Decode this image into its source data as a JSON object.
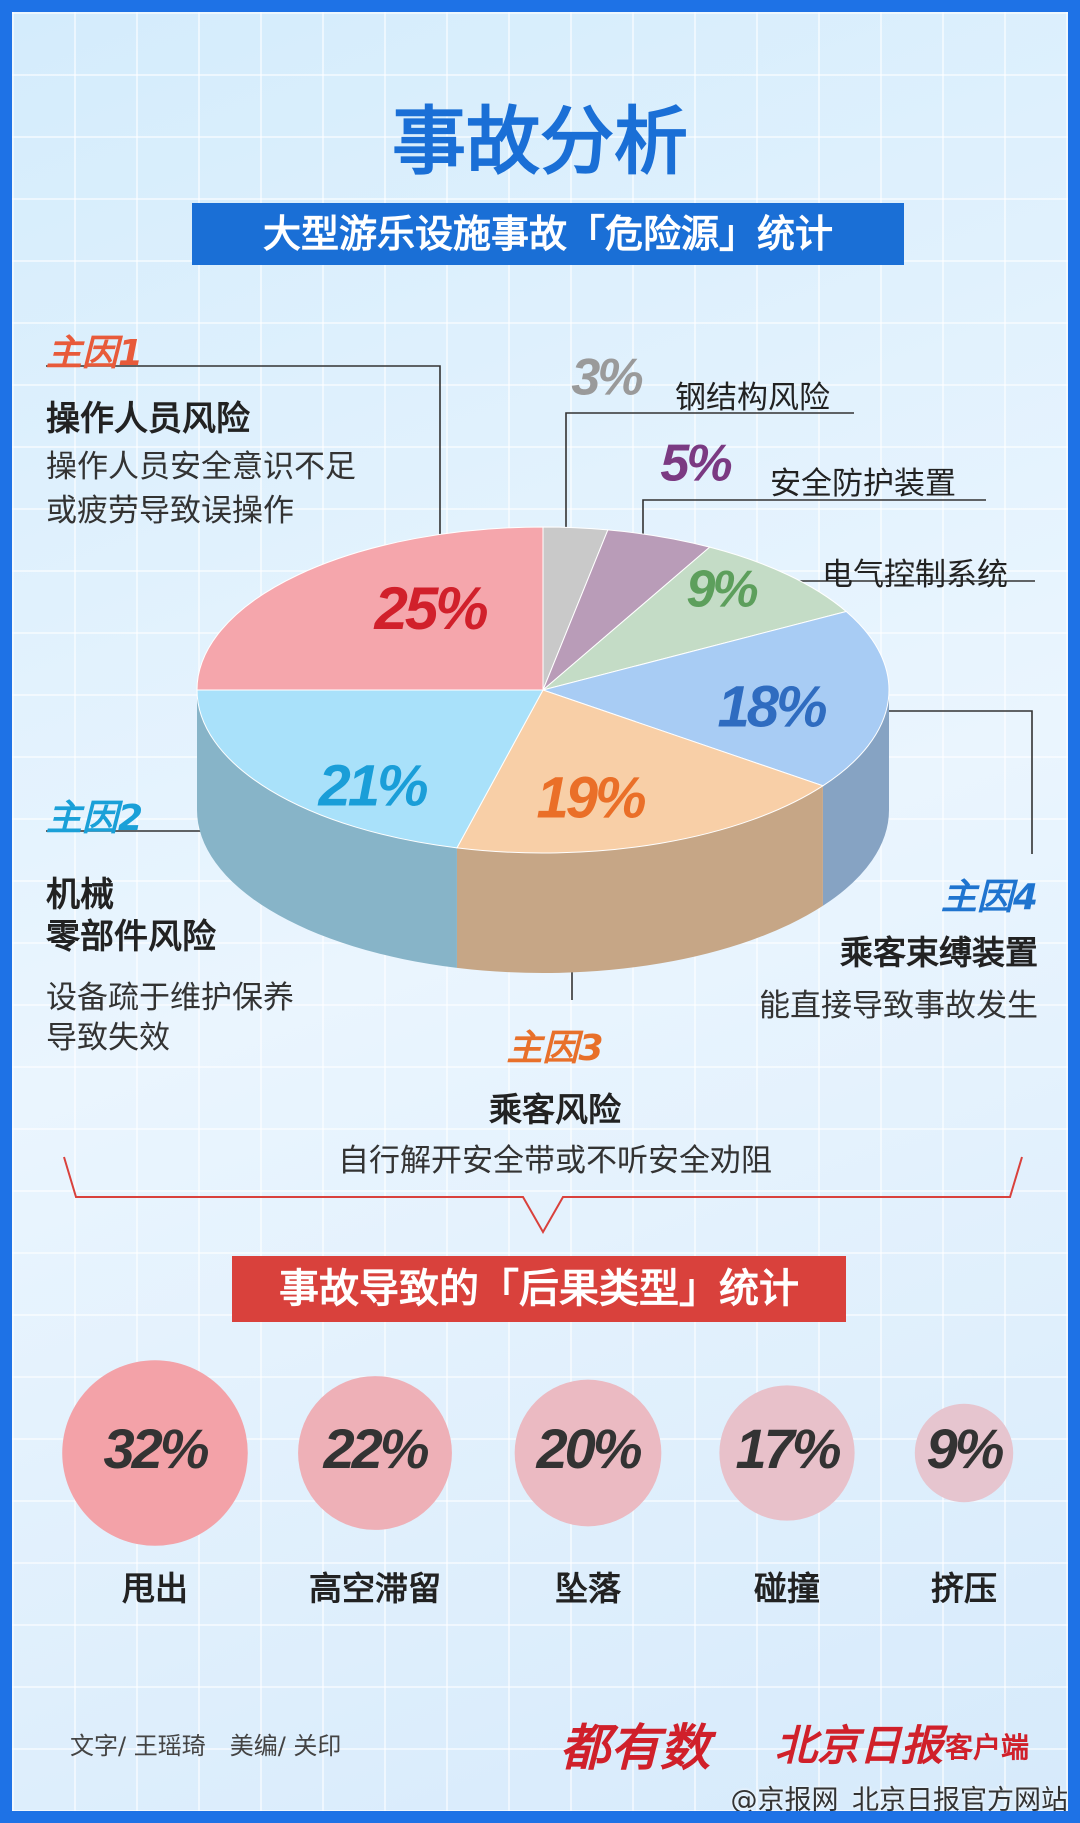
{
  "title": "事故分析",
  "chart_data": [
    {
      "type": "pie",
      "title": "大型游乐设施事故「危险源」统计",
      "categories": [
        "钢结构风险",
        "安全防护装置",
        "电气控制系统",
        "乘客束缚装置",
        "乘客风险",
        "机械\n零部件风险",
        "操作人员风险"
      ],
      "values": [
        3,
        5,
        9,
        18,
        19,
        21,
        25
      ],
      "value_labels": [
        "3%",
        "5%",
        "9%",
        "18%",
        "19%",
        "21%",
        "25%"
      ],
      "colors": [
        "#c9c9c9",
        "#b99cb8",
        "#c4dcc6",
        "#a8ccf4",
        "#f8cfa7",
        "#a9e1fa",
        "#f5a6ac"
      ],
      "label_colors": [
        "#9a9a9a",
        "#7b3a82",
        "#5d9f5c",
        "#2f6cc0",
        "#ea6f28",
        "#1a9ed8",
        "#d1202b"
      ],
      "cause_tags": [
        null,
        null,
        null,
        "主因4",
        "主因3",
        "主因2",
        "主因1"
      ],
      "descriptions": [
        null,
        null,
        null,
        "能直接导致事故发生",
        "自行解开安全带或不听安全劝阻",
        "设备疏于维护保养\n导致失效",
        "操作人员安全意识不足\n或疲劳导致误操作"
      ]
    },
    {
      "type": "bubble",
      "title": "事故导致的「后果类型」统计",
      "categories": [
        "甩出",
        "高空滞留",
        "坠落",
        "碰撞",
        "挤压"
      ],
      "values": [
        32,
        22,
        20,
        17,
        9
      ],
      "value_labels": [
        "32%",
        "22%",
        "20%",
        "17%",
        "9%"
      ],
      "colors": [
        "#f3a2a8",
        "#eeb0b7",
        "#ebbac2",
        "#e8c1ca",
        "#e6c5cf"
      ]
    }
  ],
  "footer": {
    "credits": "文字/ 王瑶琦　美编/ 关印",
    "brand": "都有数",
    "outlet": "北京日报",
    "outlet_suffix": "客户端",
    "watermark": "@京报网_北京日报官方网站"
  }
}
